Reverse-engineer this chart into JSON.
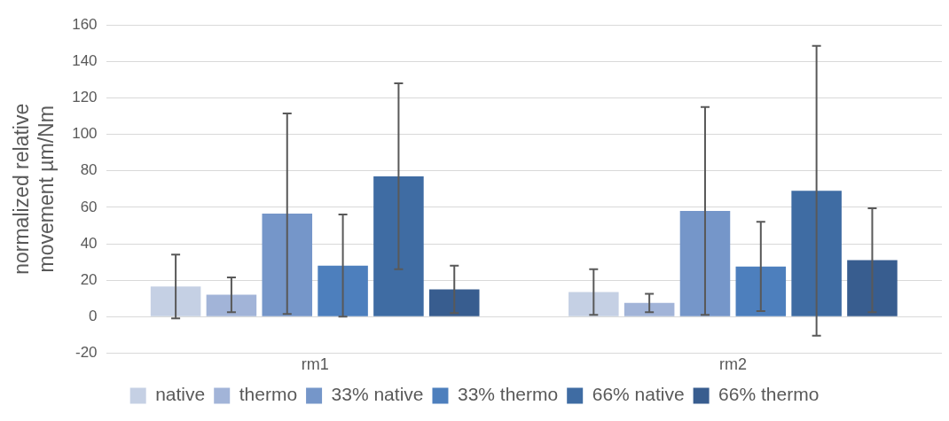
{
  "chart_data": {
    "type": "bar",
    "ylabel": "normalized relative movement µm/Nm",
    "categories": [
      "rm1",
      "rm2"
    ],
    "series": [
      {
        "name": "native",
        "color": "#c5d0e4",
        "values": [
          16.5,
          13.5
        ],
        "errors": [
          17.5,
          12.5
        ]
      },
      {
        "name": "thermo",
        "color": "#a2b4d8",
        "values": [
          12,
          7.5
        ],
        "errors": [
          9.5,
          5
        ]
      },
      {
        "name": "33% native",
        "color": "#7596c9",
        "values": [
          56.5,
          58
        ],
        "errors": [
          55,
          57
        ]
      },
      {
        "name": "33% thermo",
        "color": "#4d7fbd",
        "values": [
          28,
          27.5
        ],
        "errors": [
          28,
          24.5
        ]
      },
      {
        "name": "66% native",
        "color": "#3f6ca3",
        "values": [
          77,
          69
        ],
        "errors": [
          51,
          79.5
        ]
      },
      {
        "name": "66% thermo",
        "color": "#385d8f",
        "values": [
          15,
          31
        ],
        "errors": [
          13,
          28.5
        ]
      }
    ],
    "ylim": [
      -20,
      160
    ],
    "yticks": [
      -20,
      0,
      20,
      40,
      60,
      80,
      100,
      120,
      140,
      160
    ],
    "grid": "y",
    "legend": "bottom"
  }
}
